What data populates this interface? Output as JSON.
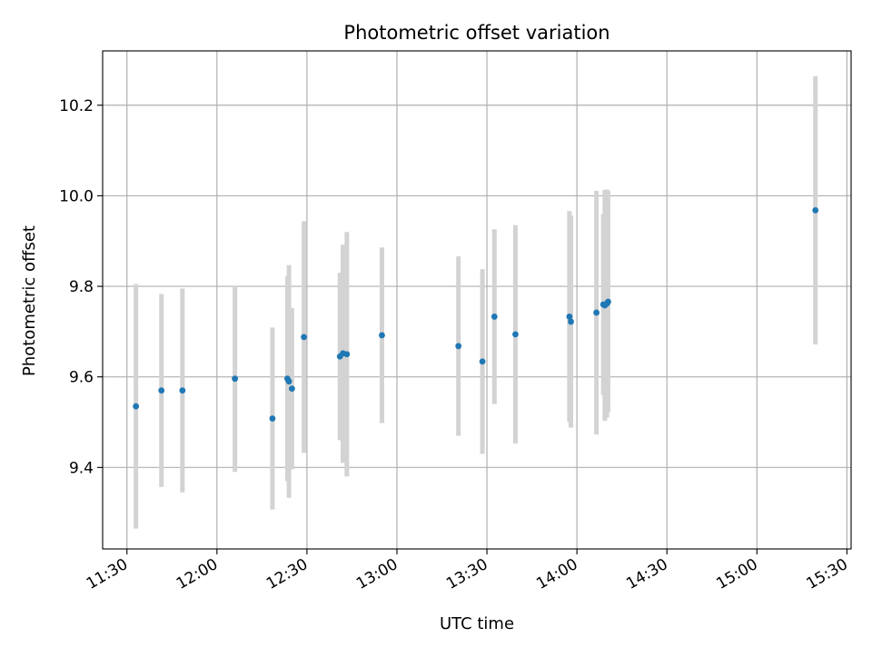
{
  "chart_data": {
    "type": "scatter",
    "title": "Photometric offset variation",
    "xlabel": "UTC time",
    "ylabel": "Photometric offset",
    "x_ticks": [
      "11:30",
      "12:00",
      "12:30",
      "13:00",
      "13:30",
      "14:00",
      "14:30",
      "15:00",
      "15:30"
    ],
    "y_ticks": [
      9.4,
      9.6,
      9.8,
      10.0,
      10.2
    ],
    "xlim": [
      "11:21.9",
      "15:31.4"
    ],
    "ylim": [
      9.22,
      10.32
    ],
    "grid": true,
    "colors": {
      "point": "#1f77b4",
      "errorbar": "#d3d3d3",
      "grid": "#b0b0b0"
    },
    "points": [
      {
        "x": "11:33",
        "y": 9.535,
        "err_low": 9.265,
        "err_high": 9.805
      },
      {
        "x": "11:41.5",
        "y": 9.57,
        "err_low": 9.357,
        "err_high": 9.783
      },
      {
        "x": "11:48.5",
        "y": 9.57,
        "err_low": 9.345,
        "err_high": 9.795
      },
      {
        "x": "12:06",
        "y": 9.596,
        "err_low": 9.39,
        "err_high": 9.8
      },
      {
        "x": "12:18.5",
        "y": 9.508,
        "err_low": 9.307,
        "err_high": 9.709
      },
      {
        "x": "12:23.5",
        "y": 9.596,
        "err_low": 9.37,
        "err_high": 9.822
      },
      {
        "x": "12:24",
        "y": 9.59,
        "err_low": 9.333,
        "err_high": 9.847
      },
      {
        "x": "12:25",
        "y": 9.574,
        "err_low": 9.396,
        "err_high": 9.752
      },
      {
        "x": "12:29",
        "y": 9.688,
        "err_low": 9.432,
        "err_high": 9.944
      },
      {
        "x": "12:41",
        "y": 9.645,
        "err_low": 9.46,
        "err_high": 9.83
      },
      {
        "x": "12:42",
        "y": 9.652,
        "err_low": 9.41,
        "err_high": 9.892
      },
      {
        "x": "12:43.3",
        "y": 9.65,
        "err_low": 9.38,
        "err_high": 9.92
      },
      {
        "x": "12:55",
        "y": 9.692,
        "err_low": 9.498,
        "err_high": 9.886
      },
      {
        "x": "13:20.5",
        "y": 9.668,
        "err_low": 9.47,
        "err_high": 9.866
      },
      {
        "x": "13:28.5",
        "y": 9.634,
        "err_low": 9.43,
        "err_high": 9.838
      },
      {
        "x": "13:32.5",
        "y": 9.733,
        "err_low": 9.54,
        "err_high": 9.926
      },
      {
        "x": "13:39.5",
        "y": 9.694,
        "err_low": 9.453,
        "err_high": 9.935
      },
      {
        "x": "13:57.5",
        "y": 9.733,
        "err_low": 9.5,
        "err_high": 9.966
      },
      {
        "x": "13:58",
        "y": 9.722,
        "err_low": 9.488,
        "err_high": 9.956
      },
      {
        "x": "14:06.5",
        "y": 9.742,
        "err_low": 9.473,
        "err_high": 10.011
      },
      {
        "x": "14:08.8",
        "y": 9.76,
        "err_low": 9.56,
        "err_high": 9.96
      },
      {
        "x": "14:09.3",
        "y": 9.758,
        "err_low": 9.503,
        "err_high": 10.013
      },
      {
        "x": "14:10",
        "y": 9.762,
        "err_low": 9.51,
        "err_high": 10.014
      },
      {
        "x": "14:10.4",
        "y": 9.766,
        "err_low": 9.522,
        "err_high": 10.01
      },
      {
        "x": "15:19.5",
        "y": 9.968,
        "err_low": 9.672,
        "err_high": 10.264
      }
    ]
  }
}
